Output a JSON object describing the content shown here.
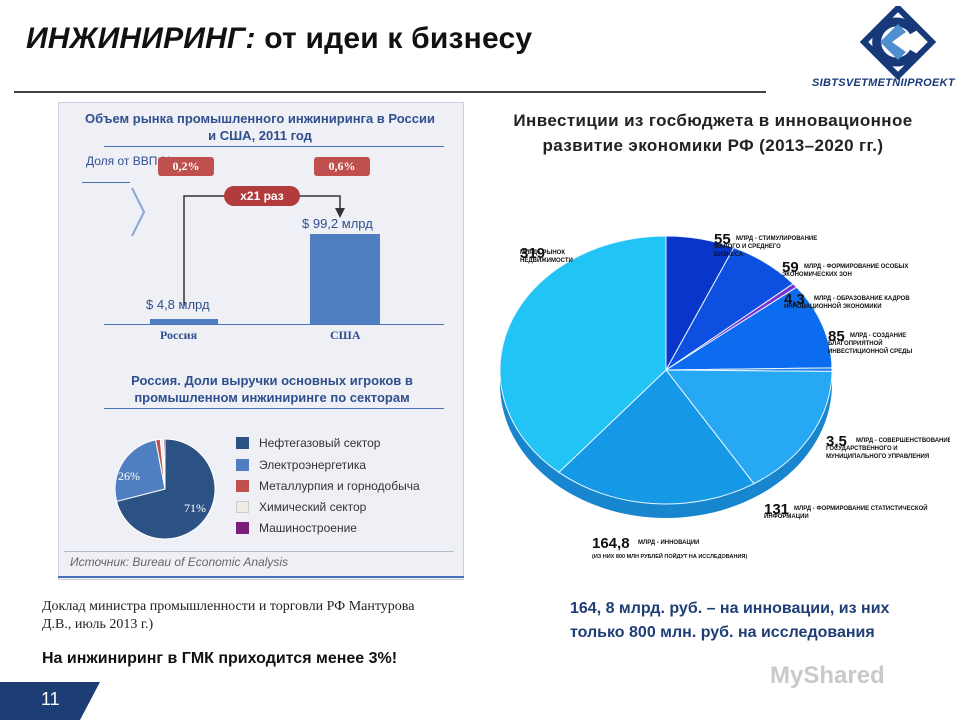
{
  "header": {
    "title_bold": "ИНЖИНИРИНГ:",
    "title_rest": " от идеи к бизнесу",
    "logo_text": "SIBTSVETMETNIIPROEKT"
  },
  "left_panel": {
    "heading_1": "Объем рынка промышленного инжиниринга в России и США, 2011 год",
    "gdp_label": "Доля от ВВП,%",
    "times_badge": "x21 раз",
    "heading_2": "Россия. Доли выручки основных игроков в промышленном инжиниринге по секторам",
    "source": "Источник: Bureau of Economic Analysis"
  },
  "footer": {
    "report": "Доклад министра промышленности и торговли РФ Мантурова Д.В., июль 2013 г.)",
    "note": "На инжиниринг в ГМК приходится менее 3%!",
    "page_number": "11",
    "watermark": "MyShared"
  },
  "right_panel": {
    "title": "Инвестиции из госбюджета в инновационное развитие экономики РФ (2013–2020 гг.)",
    "note": "164, 8 млрд. руб. – на инновации, из них только  800 млн. руб. на исследования"
  },
  "colors": {
    "dark_blue": "#2c5283",
    "mid_blue": "#4f7fc0",
    "red": "#c0504d",
    "light": "#f0ede4",
    "purple": "#7a1f7a",
    "title_blue": "#2f4f8f"
  },
  "chart_data": [
    {
      "type": "bar",
      "title": "Объем рынка промышленного инжиниринга в России и США, 2011 год",
      "categories": [
        "Россия",
        "США"
      ],
      "values": [
        4.8,
        99.2
      ],
      "value_labels": [
        "$ 4,8 млрд",
        "$ 99,2 млрд"
      ],
      "gdp_share_labels": [
        "0,2%",
        "0,6%"
      ],
      "unit": "млрд $"
    },
    {
      "type": "pie",
      "title": "Россия. Доли выручки основных игроков в промышленном инжиниринге по секторам",
      "labels": [
        "Нефтегазовый сектор",
        "Электроэнергетика",
        "Металлурпия и горнодобыча",
        "Химический сектор",
        "Машиностроение"
      ],
      "values": [
        71,
        26,
        1.5,
        1,
        0.5
      ],
      "shown_labels": [
        "71%",
        "26%"
      ],
      "colors": [
        "#2c5283",
        "#4f7fc0",
        "#c0504d",
        "#f0ede4",
        "#7a1f7a"
      ],
      "legend_position": "right"
    },
    {
      "type": "pie",
      "title": "Инвестиции из госбюджета в инновационное развитие экономики РФ (2013–2020 гг.)",
      "slices": [
        {
          "value": 55,
          "value_label": "55",
          "label": "МЛРД - СТИМУЛИРОВАНИЕ МАЛОГО И СРЕДНЕГО БИЗНЕСА",
          "color": "#0a35c9"
        },
        {
          "value": 59,
          "value_label": "59",
          "label": "МЛРД - ФОРМИРОВАНИЕ ОСОБЫХ ЭКОНОМИЧЕСКИХ ЗОН",
          "color": "#0d4fe0"
        },
        {
          "value": 4.3,
          "value_label": "4,3",
          "label": "МЛРД - ОБРАЗОВАНИЕ КАДРОВ ИННОВАЦИОННОЙ ЭКОНОМИКИ",
          "color": "#7a2fd6"
        },
        {
          "value": 85,
          "value_label": "85",
          "label": "МЛРД - СОЗДАНИЕ БЛАГОПРИЯТНОЙ ИНВЕСТИЦИОННОЙ СРЕДЫ",
          "color": "#0c6cf0"
        },
        {
          "value": 3.5,
          "value_label": "3,5",
          "label": "МЛРД - СОВЕРШЕНСТВОВАНИЕ ГОСУДАРСТВЕННОГО И МУНИЦИПАЛЬНОГО УПРАВЛЕНИЯ",
          "color": "#1e7fe8"
        },
        {
          "value": 131,
          "value_label": "131",
          "label": "МЛРД - ФОРМИРОВАНИЕ СТАТИСТИЧЕСКОЙ ИНФОРМАЦИИ",
          "color": "#26a8f2"
        },
        {
          "value": 164.8,
          "value_label": "164,8",
          "label": "МЛРД - ИННОВАЦИИ",
          "sublabel": "(ИЗ НИХ 800 МЛН РУБЛЕЙ ПОЙДУТ НА ИССЛЕДОВАНИЯ)",
          "color": "#1599e6"
        },
        {
          "value": 319,
          "value_label": "319",
          "label": "МЛРД - РЫНОК НЕДВИЖИМОСТИ",
          "color": "#22c4f6"
        }
      ]
    }
  ]
}
